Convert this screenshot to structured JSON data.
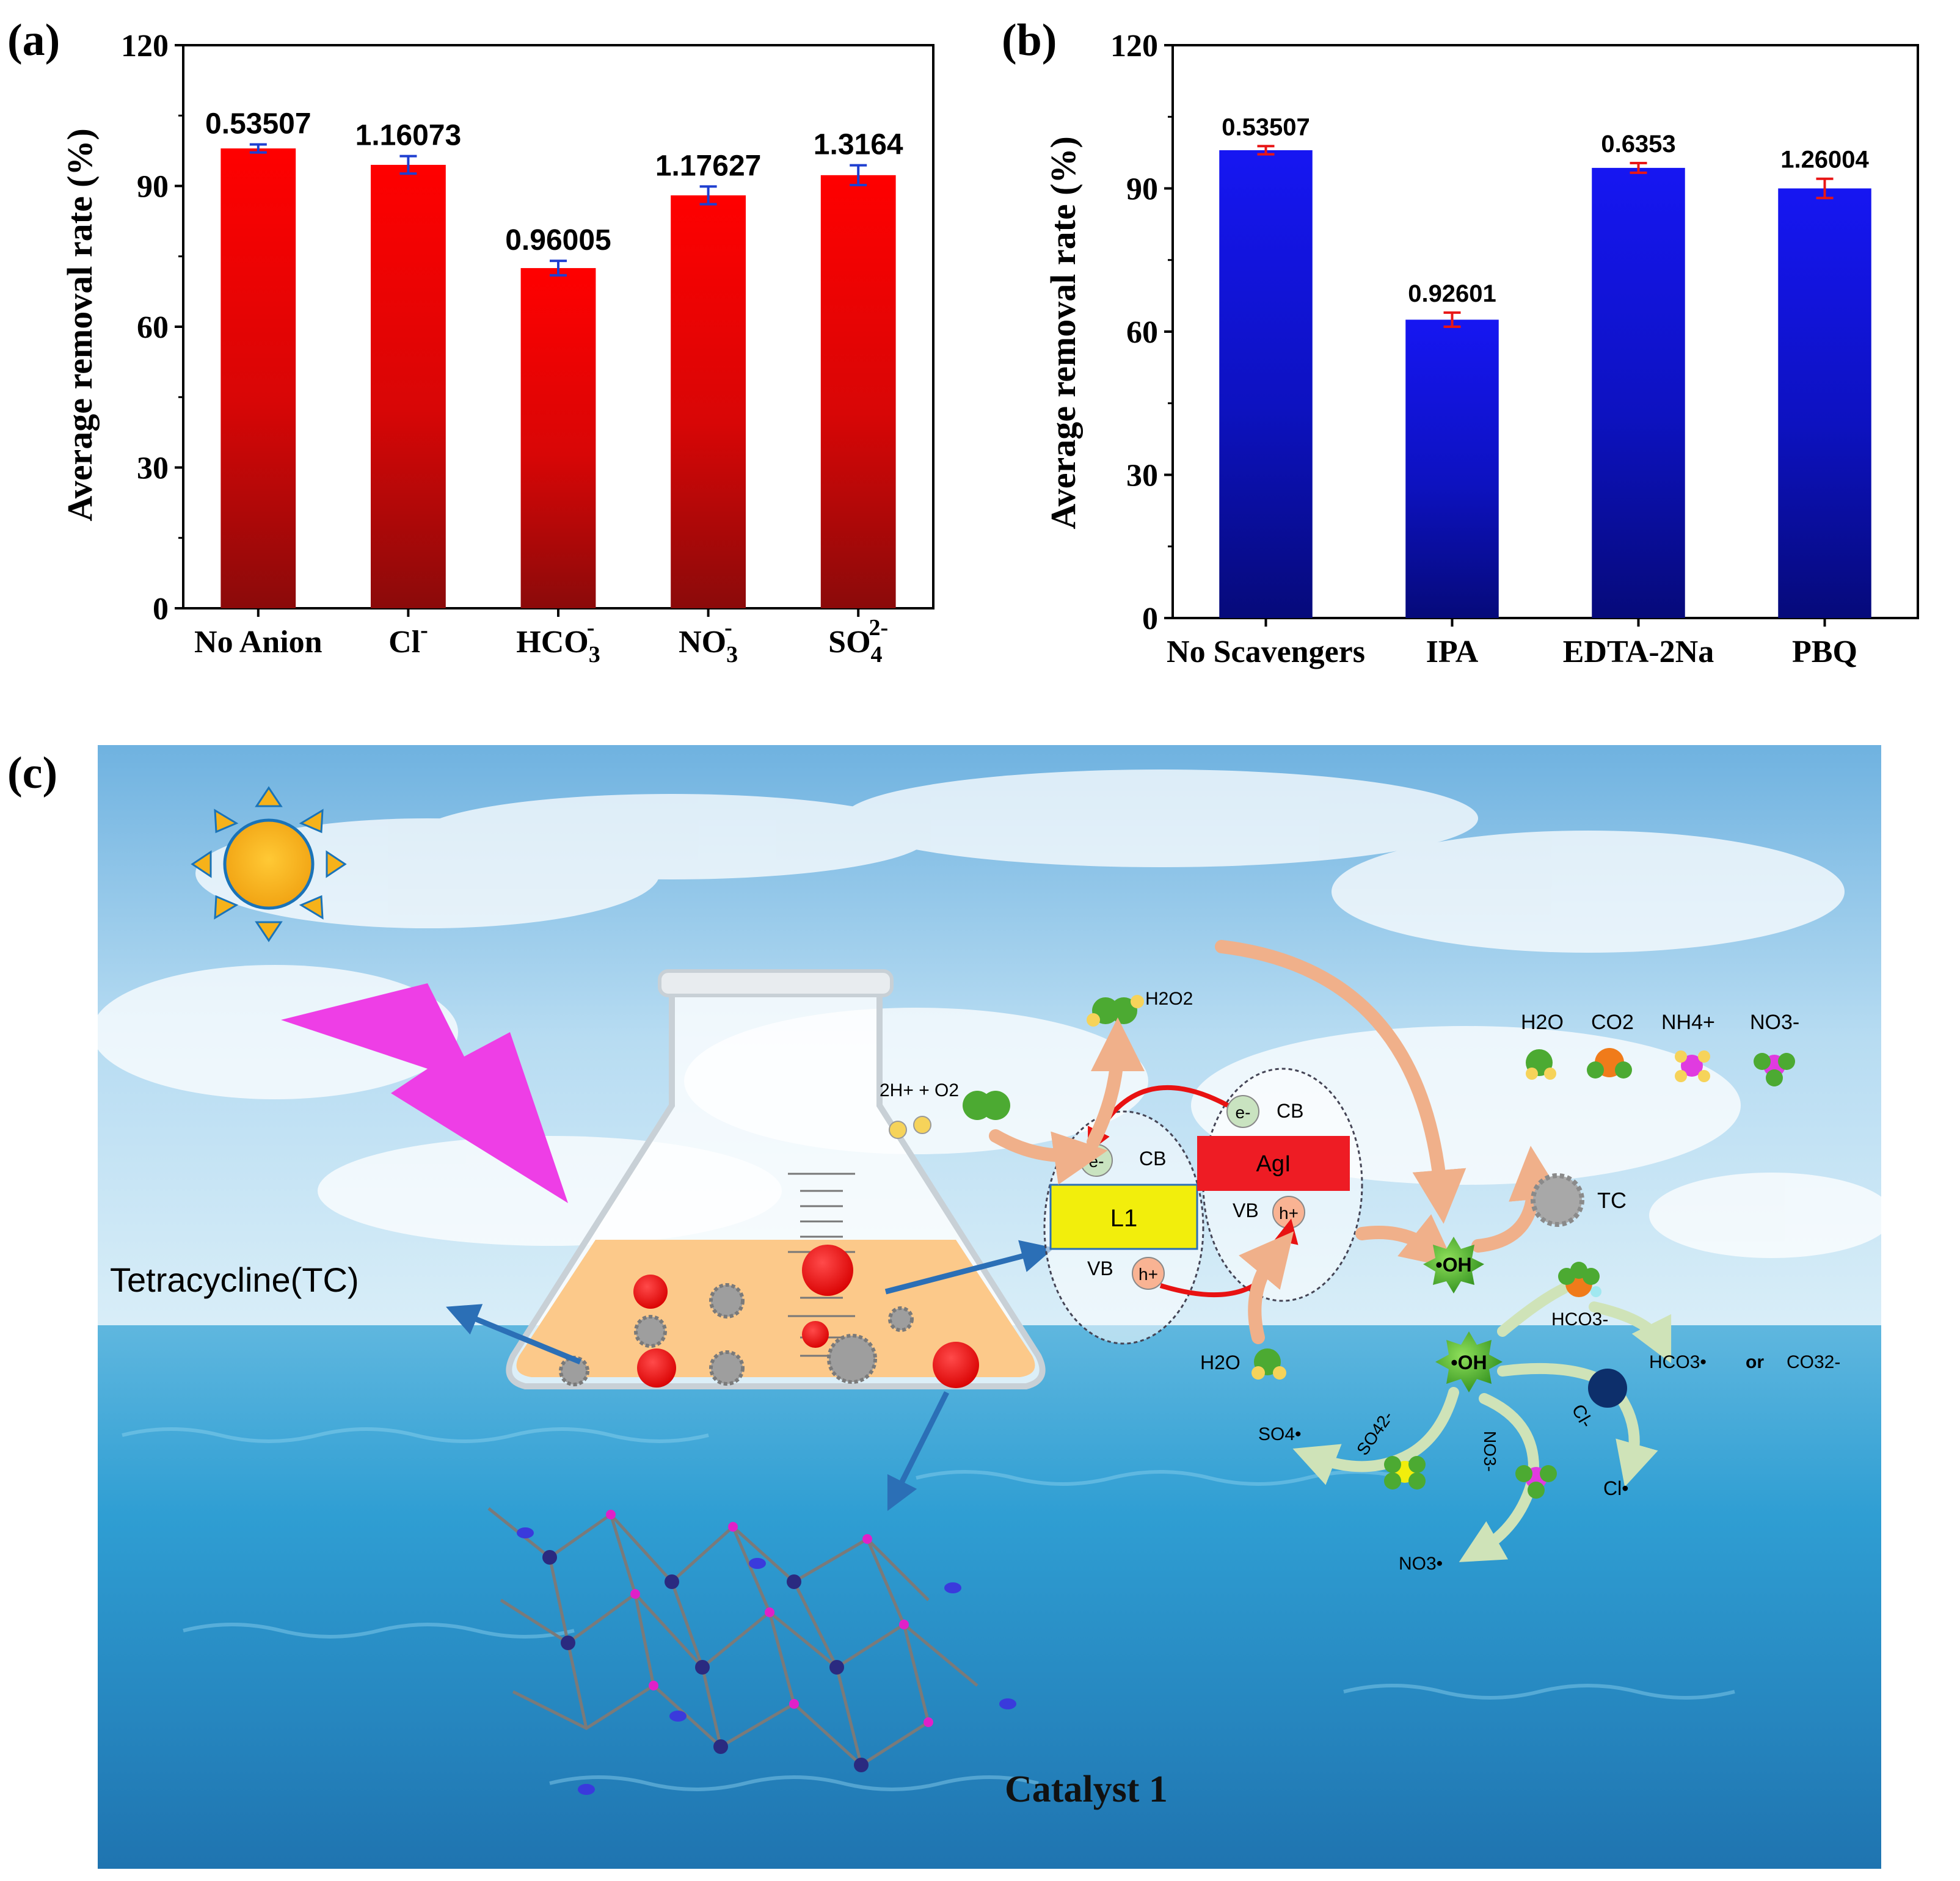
{
  "panel_a": {
    "label": "(a)"
  },
  "panel_b": {
    "label": "(b)"
  },
  "panel_c": {
    "label": "(c)",
    "tc_label": "Tetracycline(TC)",
    "catalyst_label": "Catalyst 1",
    "h2o2": "H2O2",
    "h_o2": "2H+ + O2",
    "cb": "CB",
    "vb": "VB",
    "agi": "AgI",
    "l1": "L1",
    "electron": "e-",
    "hole": "h+",
    "oh": "•OH",
    "h2o_left": "H2O",
    "tc_small": "TC",
    "products": [
      "H2O",
      "CO2",
      "NH4+",
      "NO3-"
    ],
    "hco3_minus": "HCO3-",
    "hco3_radical": "HCO3•",
    "or_word": "or",
    "co3": "CO32-",
    "cl_minus": "Cl-",
    "cl_radical": "Cl•",
    "so4_minus": "SO42-",
    "so4_radical": "SO4•",
    "no3_minus": "NO3-",
    "no3_radical": "NO3•",
    "colors": {
      "sky": "#8fc4e6",
      "sea": "#2f95c8",
      "sun": "#f6b21a",
      "bolt": "#ee3ee6",
      "agi": "#ee1c24",
      "l1": "#f2ee0c",
      "oh": "#4cae2a",
      "arrow": "#2b6fb6",
      "flow": "#f3b892"
    }
  },
  "chart_data": [
    {
      "type": "bar",
      "panel": "(a)",
      "categories": [
        "No Anion",
        "Cl-",
        "HCO3-",
        "NO3-",
        "SO42-"
      ],
      "values": [
        98,
        94.5,
        72.5,
        88,
        92.3
      ],
      "errors": [
        0.53507,
        1.16073,
        0.96005,
        1.17627,
        1.3164
      ],
      "data_labels": [
        "0.53507",
        "1.16073",
        "0.96005",
        "1.17627",
        "1.3164"
      ],
      "ylabel": "Average removal rate (%)",
      "xlabel": "",
      "ylim": [
        0,
        120
      ],
      "yticks": [
        "0",
        "30",
        "60",
        "90",
        "120"
      ],
      "bar_color_top": "#ff0000",
      "bar_color_bottom": "#8b0a0a",
      "error_color": "#1f3fd0"
    },
    {
      "type": "bar",
      "panel": "(b)",
      "categories": [
        "No Scavengers",
        "IPA",
        "EDTA-2Na",
        "PBQ"
      ],
      "values": [
        98,
        62.5,
        94.3,
        90
      ],
      "errors": [
        0.53507,
        0.92601,
        0.6353,
        1.26004
      ],
      "data_labels": [
        "0.53507",
        "0.92601",
        "0.6353",
        "1.26004"
      ],
      "ylabel": "Average removal rate (%)",
      "xlabel": "",
      "ylim": [
        0,
        120
      ],
      "yticks": [
        "0",
        "30",
        "60",
        "90",
        "120"
      ],
      "bar_color_top": "#1414f0",
      "bar_color_bottom": "#060a7a",
      "error_color": "#e81616"
    }
  ]
}
